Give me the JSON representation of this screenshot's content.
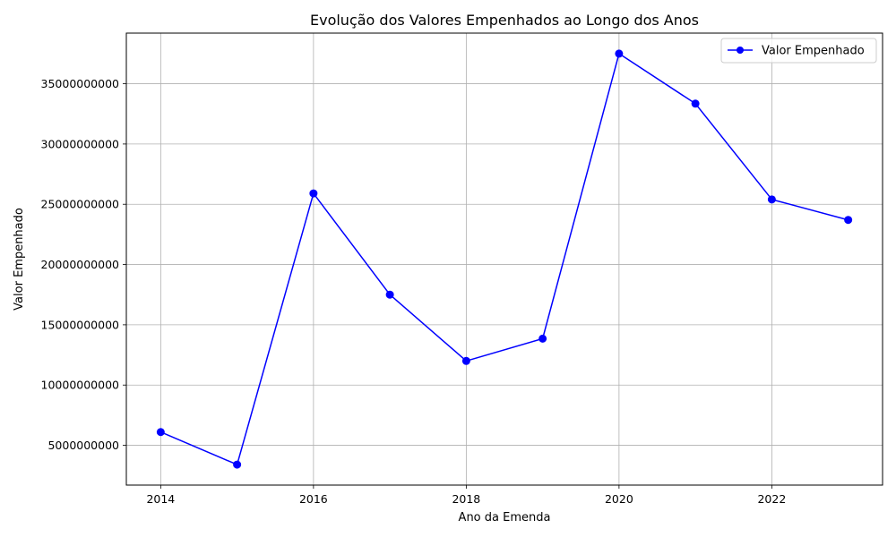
{
  "chart_data": {
    "type": "line",
    "title": "Evolução dos Valores Empenhados ao Longo dos Anos",
    "xlabel": "Ano da Emenda",
    "ylabel": "Valor Empenhado",
    "x": [
      2014,
      2015,
      2016,
      2017,
      2018,
      2019,
      2020,
      2021,
      2022,
      2023
    ],
    "series": [
      {
        "name": "Valor Empenhado",
        "color": "#0000ff",
        "marker": "circle",
        "values": [
          6100000000,
          3400000000,
          25900000000,
          17500000000,
          12000000000,
          13850000000,
          37500000000,
          33350000000,
          25400000000,
          23700000000
        ]
      }
    ],
    "xlim": [
      2013.55,
      2023.45
    ],
    "ylim": [
      1700000000,
      39200000000
    ],
    "xticks": [
      2014,
      2016,
      2018,
      2020,
      2022
    ],
    "xtick_labels": [
      "2014",
      "2016",
      "2018",
      "2020",
      "2022"
    ],
    "yticks": [
      5000000000,
      10000000000,
      15000000000,
      20000000000,
      25000000000,
      30000000000,
      35000000000
    ],
    "ytick_labels": [
      "5000000000",
      "10000000000",
      "15000000000",
      "20000000000",
      "25000000000",
      "30000000000",
      "35000000000"
    ],
    "grid": true,
    "legend_position": "top-right"
  }
}
